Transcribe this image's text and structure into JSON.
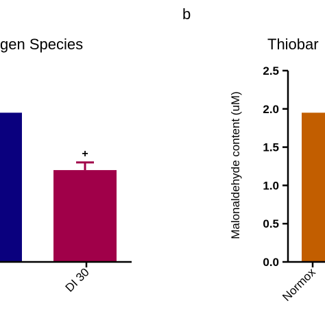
{
  "panel_label": "b",
  "chart_data": [
    {
      "type": "bar",
      "title": "gen Species",
      "xlabel": "",
      "ylabel": "",
      "ylim": [
        0,
        2.5
      ],
      "categories": [
        "",
        "DI 30"
      ],
      "values": [
        1.95,
        1.2
      ],
      "errors": [
        null,
        0.1
      ],
      "colors": [
        "#0a007e",
        "#a00049"
      ],
      "annotations": [
        null,
        "+"
      ],
      "grid": false
    },
    {
      "type": "bar",
      "title": "Thiobar",
      "xlabel": "",
      "ylabel": "Malonaldehyde content (uM)",
      "ylim": [
        0,
        2.5
      ],
      "yticks": [
        "0.0",
        "0.5",
        "1.0",
        "1.5",
        "2.0",
        "2.5"
      ],
      "categories": [
        "Normox"
      ],
      "values": [
        1.95
      ],
      "colors": [
        "#c25e00"
      ],
      "grid": false
    }
  ]
}
